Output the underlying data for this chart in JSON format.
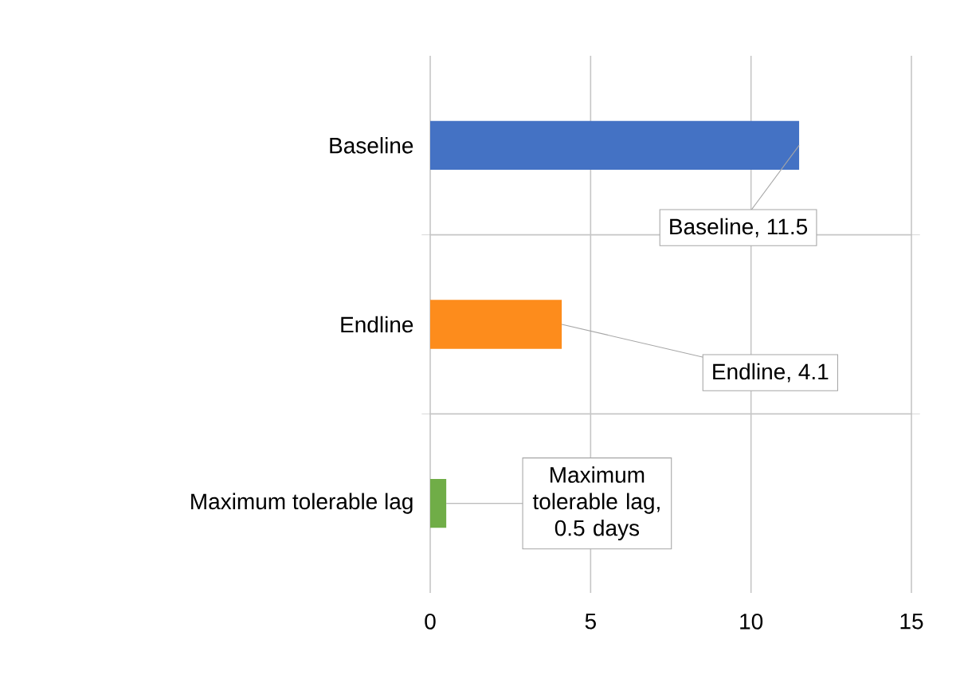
{
  "chart_data": {
    "type": "bar",
    "orientation": "horizontal",
    "categories": [
      "Baseline",
      "Endline",
      "Maximum tolerable lag"
    ],
    "values": [
      11.5,
      4.1,
      0.5
    ],
    "colors": [
      "#4472c4",
      "#fd8c1c",
      "#70ad47"
    ],
    "value_labels": [
      "Baseline, 11.5",
      "Endline, 4.1",
      "Maximum tolerable lag, 0.5 days"
    ],
    "xlim": [
      0,
      15
    ],
    "xticks": [
      0,
      5,
      10,
      15
    ],
    "grid": true
  }
}
